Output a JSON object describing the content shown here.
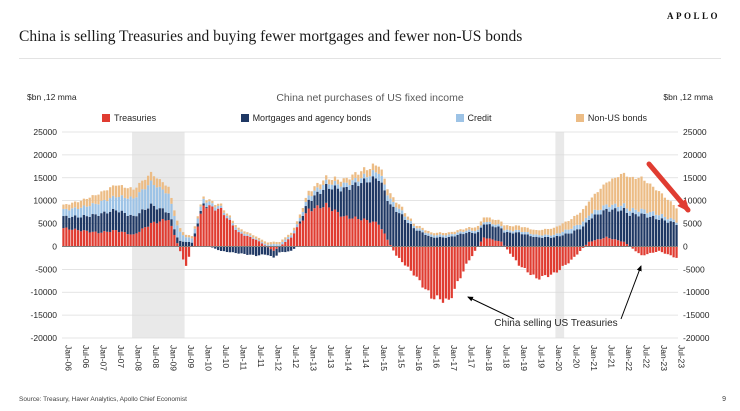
{
  "header": {
    "logo": "APOLLO",
    "title": "China is selling Treasuries and buying fewer mortgages and fewer non-US bonds"
  },
  "chart_data": {
    "type": "bar",
    "stacked": true,
    "title": "China net purchases of US fixed income",
    "unit_label_left": "$bn ,12 mma",
    "unit_label_right": "$bn ,12 mma",
    "ylim": [
      -20000,
      25000
    ],
    "ytick_step": 5000,
    "grid": true,
    "legend_position": "top",
    "x_start": "Jan-06",
    "x_end": "Jul-23",
    "x_note": "monthly bars, tick labels every 6 months; series values below are semi-annual keyframes read off the chart and interpolated monthly",
    "tick_categories": [
      "Jan-06",
      "Jul-06",
      "Jan-07",
      "Jul-07",
      "Jan-08",
      "Jul-08",
      "Jan-09",
      "Jul-09",
      "Jan-10",
      "Jul-10",
      "Jan-11",
      "Jul-11",
      "Jan-12",
      "Jul-12",
      "Jan-13",
      "Jul-13",
      "Jan-14",
      "Jul-14",
      "Jan-15",
      "Jul-15",
      "Jan-16",
      "Jul-16",
      "Jan-17",
      "Jul-17",
      "Jan-18",
      "Jul-18",
      "Jan-19",
      "Jul-19",
      "Jan-20",
      "Jul-20",
      "Jan-21",
      "Jul-21",
      "Jan-22",
      "Jul-22",
      "Jan-23",
      "Jul-23"
    ],
    "series": [
      {
        "name": "Treasuries",
        "color": "#e03c31",
        "values": [
          4000,
          3500,
          3000,
          3500,
          2500,
          5000,
          6000,
          -4500,
          9000,
          8000,
          3000,
          1500,
          -1000,
          2000,
          8000,
          9000,
          6500,
          6000,
          5000,
          -2000,
          -6000,
          -11000,
          -12000,
          -4000,
          2000,
          1000,
          -4000,
          -7000,
          -6000,
          -3000,
          1000,
          2000,
          1000,
          -2000,
          -1000,
          -2500
        ]
      },
      {
        "name": "Mortgages and agency bonds",
        "color": "#1f3864",
        "values": [
          2500,
          3000,
          4000,
          4500,
          4000,
          4000,
          1500,
          1000,
          500,
          -1000,
          -1500,
          -2000,
          -1500,
          -1000,
          2000,
          4000,
          6000,
          8000,
          10000,
          8000,
          4000,
          2000,
          2000,
          3000,
          3000,
          3000,
          3000,
          2000,
          2000,
          3000,
          5000,
          6000,
          7000,
          7000,
          6000,
          5000
        ]
      },
      {
        "name": "Credit",
        "color": "#9dc3e6",
        "values": [
          1500,
          2000,
          2500,
          3000,
          4000,
          5000,
          4000,
          1000,
          1000,
          500,
          500,
          200,
          500,
          500,
          1000,
          1000,
          1000,
          1000,
          1500,
          1000,
          500,
          500,
          500,
          500,
          500,
          500,
          500,
          500,
          500,
          1000,
          1000,
          1000,
          1000,
          1000,
          1000,
          500
        ]
      },
      {
        "name": "Non-US bonds",
        "color": "#ecbc85",
        "values": [
          1000,
          1500,
          2000,
          2500,
          2000,
          2000,
          1500,
          500,
          500,
          500,
          500,
          500,
          500,
          500,
          1000,
          1000,
          1000,
          1500,
          1500,
          1000,
          500,
          500,
          500,
          500,
          1000,
          1000,
          1000,
          1000,
          1500,
          2000,
          3000,
          5000,
          7000,
          7000,
          5000,
          3000
        ]
      }
    ],
    "recession_bands": [
      {
        "start": "Jan-08",
        "end": "Jul-09"
      },
      {
        "start": "Feb-20",
        "end": "May-20"
      }
    ],
    "annotations": [
      {
        "text": "China selling US Treasuries"
      }
    ],
    "trend_arrow_color": "#e03c31"
  },
  "footer": {
    "source": "Source: Treasury, Haver Analytics, Apollo Chief Economist",
    "page": "9"
  }
}
